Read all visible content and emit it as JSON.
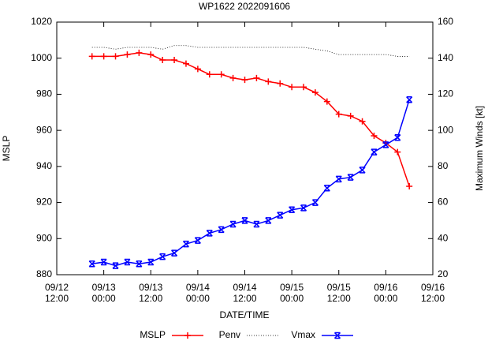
{
  "chart_data": {
    "type": "line",
    "title": "WP1622 2022091606",
    "x_label": "DATE/TIME",
    "y_label": "MSLP",
    "y2_label": "Maximum Winds [kt]",
    "x": [
      "09/12 21:00",
      "09/13 00:00",
      "09/13 03:00",
      "09/13 06:00",
      "09/13 09:00",
      "09/13 12:00",
      "09/13 15:00",
      "09/13 18:00",
      "09/13 21:00",
      "09/14 00:00",
      "09/14 03:00",
      "09/14 06:00",
      "09/14 09:00",
      "09/14 12:00",
      "09/14 15:00",
      "09/14 18:00",
      "09/14 21:00",
      "09/15 00:00",
      "09/15 03:00",
      "09/15 06:00",
      "09/15 09:00",
      "09/15 12:00",
      "09/15 15:00",
      "09/15 18:00",
      "09/15 21:00",
      "09/16 00:00",
      "09/16 03:00",
      "09/16 06:00"
    ],
    "series": [
      {
        "name": "MSLP",
        "color": "#ff0000",
        "style": "line-cross",
        "axis": "y",
        "values": [
          1001,
          1001,
          1001,
          1002,
          1003,
          1002,
          999,
          999,
          997,
          994,
          991,
          991,
          989,
          988,
          989,
          987,
          986,
          984,
          984,
          981,
          976,
          969,
          968,
          965,
          957,
          953,
          948,
          929
        ]
      },
      {
        "name": "Penv",
        "color": "#000000",
        "style": "dotted",
        "axis": "y",
        "values": [
          1006,
          1006,
          1005,
          1006,
          1006,
          1006,
          1005,
          1007,
          1007,
          1006,
          1006,
          1006,
          1006,
          1006,
          1006,
          1006,
          1006,
          1006,
          1006,
          1005,
          1004,
          1002,
          1002,
          1002,
          1002,
          1002,
          1001,
          1001
        ]
      },
      {
        "name": "Vmax",
        "color": "#0000ff",
        "style": "line-star",
        "axis": "y2",
        "values": [
          26,
          27,
          25,
          27,
          26,
          27,
          30,
          32,
          37,
          39,
          43,
          45,
          48,
          50,
          48,
          50,
          53,
          56,
          57,
          60,
          68,
          73,
          74,
          78,
          88,
          92,
          96,
          117
        ]
      }
    ],
    "xlim": [
      "09/12 12:00",
      "09/16 12:00"
    ],
    "xticks": [
      "09/12 12:00",
      "09/13 00:00",
      "09/13 12:00",
      "09/14 00:00",
      "09/14 12:00",
      "09/15 00:00",
      "09/15 12:00",
      "09/16 00:00",
      "09/16 12:00"
    ],
    "ylim": [
      880,
      1020
    ],
    "yticks": [
      880,
      900,
      920,
      940,
      960,
      980,
      1000,
      1020
    ],
    "y2lim": [
      20,
      160
    ],
    "y2ticks": [
      20,
      40,
      60,
      80,
      100,
      120,
      140,
      160
    ],
    "legend": "bottom"
  }
}
